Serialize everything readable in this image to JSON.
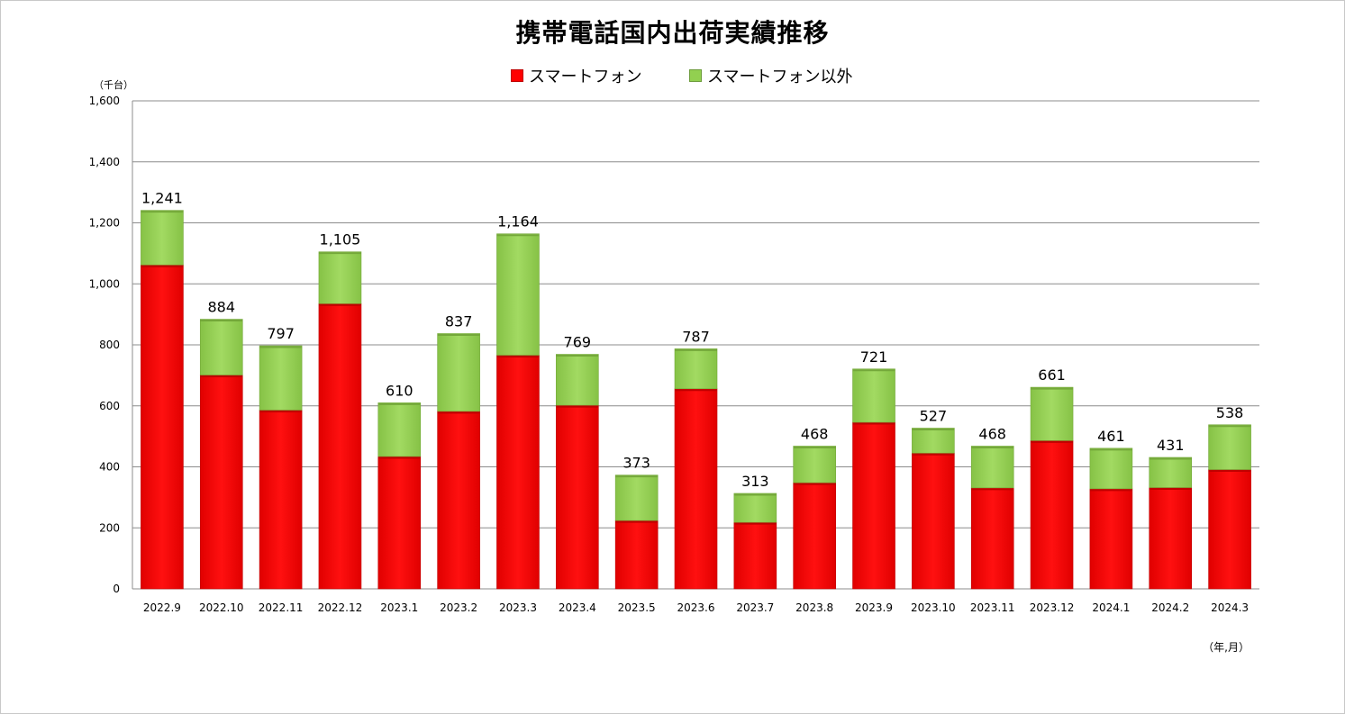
{
  "chart_data": {
    "type": "bar",
    "stacked": true,
    "title": "携帯電話国内出荷実績推移",
    "ylabel": "（千台）",
    "xlabel": "（年,月）",
    "ylim": [
      0,
      1600
    ],
    "yticks": [
      0,
      200,
      400,
      600,
      800,
      1000,
      1200,
      1400,
      1600
    ],
    "ytick_labels": [
      "0",
      "200",
      "400",
      "600",
      "800",
      "1,000",
      "1,200",
      "1,400",
      "1,600"
    ],
    "grid": true,
    "legend": "top-center",
    "categories": [
      "2022.9",
      "2022.10",
      "2022.11",
      "2022.12",
      "2023.1",
      "2023.2",
      "2023.3",
      "2023.4",
      "2023.5",
      "2023.6",
      "2023.7",
      "2023.8",
      "2023.9",
      "2023.10",
      "2023.11",
      "2023.12",
      "2024.1",
      "2024.2",
      "2024.3"
    ],
    "series": [
      {
        "name": "スマートフォン",
        "color": "#ff0000",
        "values": [
          1062,
          701,
          586,
          935,
          434,
          582,
          766,
          602,
          224,
          656,
          218,
          348,
          546,
          445,
          331,
          486,
          328,
          332,
          391
        ]
      },
      {
        "name": "スマートフォン以外",
        "color": "#92d050",
        "values": [
          179,
          183,
          211,
          170,
          176,
          255,
          398,
          167,
          149,
          131,
          95,
          120,
          175,
          82,
          137,
          175,
          133,
          99,
          147
        ]
      }
    ],
    "totals": [
      1241,
      884,
      797,
      1105,
      610,
      837,
      1164,
      769,
      373,
      787,
      313,
      468,
      721,
      527,
      468,
      661,
      461,
      431,
      538
    ],
    "total_labels": [
      "1,241",
      "884",
      "797",
      "1,105",
      "610",
      "837",
      "1,164",
      "769",
      "373",
      "787",
      "313",
      "468",
      "721",
      "527",
      "468",
      "661",
      "461",
      "431",
      "538"
    ]
  }
}
